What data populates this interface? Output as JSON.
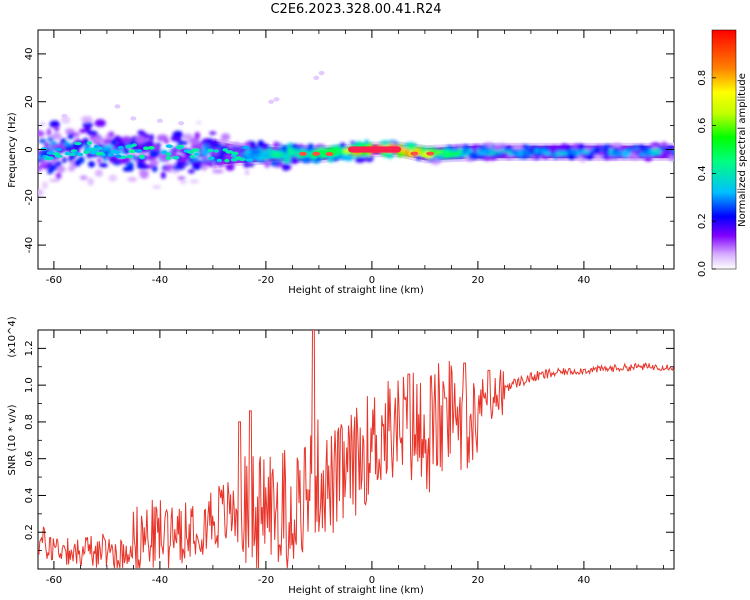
{
  "figure": {
    "title": "C2E6.2023.328.00.41.R24"
  },
  "chart_data": [
    {
      "type": "heatmap",
      "xlabel": "Height of straight line (km)",
      "ylabel": "Frequency (Hz)",
      "xlim": [
        -63,
        57
      ],
      "ylim": [
        -50,
        50
      ],
      "x_ticks": [
        "-60",
        "-40",
        "-20",
        "0",
        "20",
        "40"
      ],
      "y_ticks": [
        "-40",
        "-20",
        "0",
        "20",
        "40"
      ],
      "colorbar": {
        "label": "Normalized spectral amplitude",
        "range": [
          0,
          1
        ],
        "ticks": [
          "0.0",
          "0.2",
          "0.4",
          "0.6",
          "0.8"
        ],
        "colors": [
          "#ffffff",
          "#d8b0ff",
          "#8000ff",
          "#0000ff",
          "#00bfff",
          "#00ff80",
          "#00ff00",
          "#c0ff00",
          "#ffff00",
          "#ff8000",
          "#ff0000"
        ]
      },
      "band": {
        "x": [
          -63,
          -55,
          -45,
          -35,
          -25,
          -15,
          -10,
          -5,
          0,
          5,
          10,
          20,
          30,
          40,
          57
        ],
        "center_hz": [
          -2,
          0,
          -1,
          -1,
          -2,
          -2,
          -2,
          -1,
          0,
          0,
          -2,
          -1,
          -1,
          -1,
          -1
        ],
        "halfwidth_hz": [
          7,
          9,
          8,
          6,
          3,
          2,
          2,
          1.5,
          1.5,
          1.5,
          2,
          2,
          2,
          2,
          2
        ],
        "peak_amplitude": [
          0.3,
          0.3,
          0.25,
          0.25,
          0.3,
          0.45,
          0.5,
          0.6,
          0.95,
          0.95,
          0.7,
          0.35,
          0.35,
          0.3,
          0.3
        ]
      }
    },
    {
      "type": "line",
      "xlabel": "Height of straight line (km)",
      "ylabel": "SNR (10 * v/v)",
      "y_scale_label": "(x10^4)",
      "xlim": [
        -63,
        57
      ],
      "ylim": [
        0,
        1.3
      ],
      "x_ticks": [
        "-60",
        "-40",
        "-20",
        "0",
        "20",
        "40"
      ],
      "y_ticks": [
        "0.2",
        "0.4",
        "0.6",
        "0.8",
        "1.0",
        "1.2"
      ],
      "color": "#e8352a",
      "series": [
        {
          "x": [
            -63,
            -60,
            -55,
            -50,
            -47,
            -45,
            -40,
            -35,
            -30,
            -25,
            -20,
            -15,
            -12,
            -10,
            -8,
            -5,
            -2,
            0,
            2,
            5,
            8,
            10,
            12,
            15,
            18,
            20,
            22,
            25,
            30,
            35,
            40,
            45,
            50,
            57
          ],
          "y": [
            0.15,
            0.12,
            0.1,
            0.1,
            0.08,
            0.15,
            0.2,
            0.25,
            0.28,
            0.32,
            0.35,
            0.35,
            0.45,
            0.5,
            0.45,
            0.52,
            0.62,
            0.68,
            0.73,
            0.76,
            0.78,
            0.72,
            0.8,
            0.82,
            0.9,
            0.9,
            0.93,
            0.99,
            1.04,
            1.07,
            1.08,
            1.09,
            1.1,
            1.1
          ]
        }
      ],
      "spikes": [
        {
          "x": -11,
          "y": 1.3
        },
        {
          "x": -23,
          "y": 0.86
        },
        {
          "x": -25,
          "y": 0.8
        },
        {
          "x": 7,
          "y": 1.06
        },
        {
          "x": 17.5,
          "y": 1.12
        },
        {
          "x": 14,
          "y": 0.93
        },
        {
          "x": 22,
          "y": 1.08
        }
      ]
    }
  ]
}
